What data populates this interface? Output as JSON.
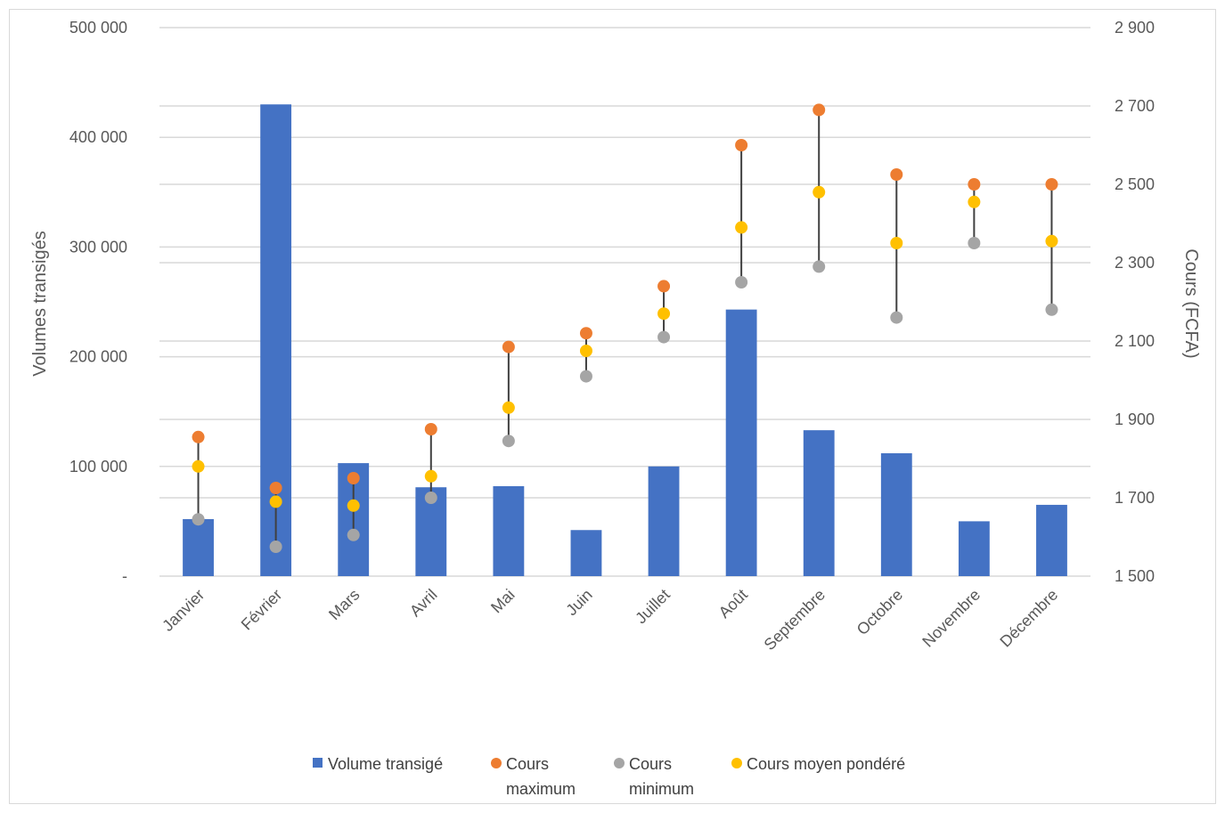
{
  "chart_data": {
    "type": "bar",
    "categories": [
      "Janvier",
      "Février",
      "Mars",
      "Avril",
      "Mai",
      "Juin",
      "Juillet",
      "Août",
      "Septembre",
      "Octobre",
      "Novembre",
      "Décembre"
    ],
    "y_left": {
      "label": "Volumes transigés",
      "range": [
        0,
        500000
      ],
      "ticks": [
        0,
        100000,
        200000,
        300000,
        400000,
        500000
      ],
      "tick_labels": [
        "-",
        "100 000",
        "200 000",
        "300 000",
        "400 000",
        "500 000"
      ]
    },
    "y_right": {
      "label": "Cours (FCFA)",
      "range": [
        1500,
        2900
      ],
      "ticks": [
        1500,
        1700,
        1900,
        2100,
        2300,
        2500,
        2700,
        2900
      ],
      "tick_labels": [
        "1 500",
        "1 700",
        "1 900",
        "2 100",
        "2 300",
        "2 500",
        "2 700",
        "2 900"
      ]
    },
    "grid": true,
    "legend_position": "bottom",
    "series": [
      {
        "name": "Volume transigé",
        "type": "bar",
        "axis": "left",
        "color": "#4472c4",
        "values": [
          52000,
          430000,
          103000,
          81000,
          82000,
          42000,
          100000,
          243000,
          133000,
          112000,
          50000,
          65000
        ]
      },
      {
        "name": "Cours maximum",
        "legend_lines": [
          "Cours",
          "maximum"
        ],
        "type": "scatter",
        "axis": "right",
        "color": "#ed7d31",
        "values": [
          1855,
          1725,
          1750,
          1875,
          2085,
          2120,
          2240,
          2600,
          2690,
          2525,
          2500,
          2500
        ]
      },
      {
        "name": "Cours minimum",
        "legend_lines": [
          "Cours",
          "minimum"
        ],
        "type": "scatter",
        "axis": "right",
        "color": "#a5a5a5",
        "values": [
          1645,
          1575,
          1605,
          1700,
          1845,
          2010,
          2110,
          2250,
          2290,
          2160,
          2350,
          2180
        ]
      },
      {
        "name": "Cours moyen pondéré",
        "type": "scatter",
        "axis": "right",
        "color": "#ffc000",
        "values": [
          1780,
          1690,
          1680,
          1755,
          1930,
          2075,
          2170,
          2390,
          2480,
          2350,
          2455,
          2355
        ]
      }
    ]
  }
}
